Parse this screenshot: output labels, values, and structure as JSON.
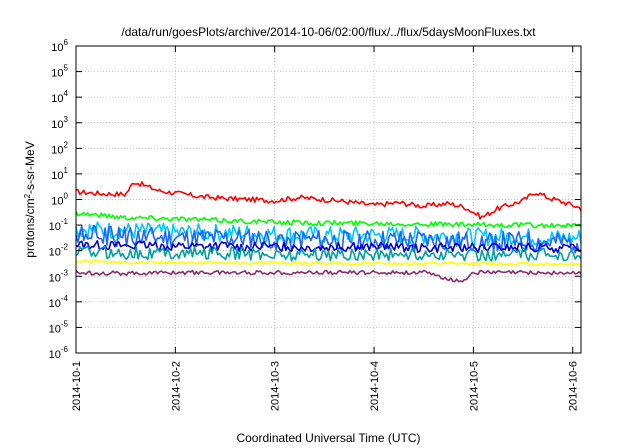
{
  "chart_data": {
    "type": "line",
    "title": "/data/run/goesPlots/archive/2014-10-06/02:00/flux/../flux/5daysMoonFluxes.txt",
    "xlabel": "Coordinated Universal Time (UTC)",
    "ylabel": {
      "prefix": "protons/cm",
      "sup": "2",
      "suffix": "-s-sr-MeV"
    },
    "y_scale": "log",
    "ylim": [
      1e-06,
      1000000.0
    ],
    "y_ticks": [
      {
        "value": 1e-06,
        "base": "10",
        "exp": "-6"
      },
      {
        "value": 1e-05,
        "base": "10",
        "exp": "-5"
      },
      {
        "value": 0.0001,
        "base": "10",
        "exp": "-4"
      },
      {
        "value": 0.001,
        "base": "10",
        "exp": "-3"
      },
      {
        "value": 0.01,
        "base": "10",
        "exp": "-2"
      },
      {
        "value": 0.1,
        "base": "10",
        "exp": "-1"
      },
      {
        "value": 1,
        "base": "10",
        "exp": "0"
      },
      {
        "value": 10,
        "base": "10",
        "exp": "1"
      },
      {
        "value": 100,
        "base": "10",
        "exp": "2"
      },
      {
        "value": 1000,
        "base": "10",
        "exp": "3"
      },
      {
        "value": 10000,
        "base": "10",
        "exp": "4"
      },
      {
        "value": 100000,
        "base": "10",
        "exp": "5"
      },
      {
        "value": 1000000,
        "base": "10",
        "exp": "6"
      }
    ],
    "x_range": [
      "2014-10-01",
      "2014-10-06 02:00"
    ],
    "x_ticks": [
      "2014-10-1",
      "2014-10-2",
      "2014-10-3",
      "2014-10-4",
      "2014-10-5",
      "2014-10-6"
    ],
    "grid": true,
    "series": [
      {
        "color": "#ff0000",
        "x": [
          "2014-10-01 00:00",
          "2014-10-01 06:00",
          "2014-10-01 12:00",
          "2014-10-01 14:00",
          "2014-10-01 20:00",
          "2014-10-02 06:00",
          "2014-10-02 12:00",
          "2014-10-02 18:00",
          "2014-10-03 00:00",
          "2014-10-03 06:00",
          "2014-10-03 12:00",
          "2014-10-03 18:00",
          "2014-10-04 00:00",
          "2014-10-04 06:00",
          "2014-10-04 12:00",
          "2014-10-04 18:00",
          "2014-10-04 22:00",
          "2014-10-05 02:00",
          "2014-10-05 06:00",
          "2014-10-05 12:00",
          "2014-10-05 15:00",
          "2014-10-05 18:00",
          "2014-10-06 00:00",
          "2014-10-06 02:00"
        ],
        "y": [
          2.0,
          1.7,
          1.6,
          5.0,
          2.2,
          1.3,
          1.1,
          1.0,
          0.9,
          1.2,
          1.0,
          0.8,
          0.6,
          0.75,
          0.55,
          0.7,
          0.5,
          0.2,
          0.45,
          0.9,
          2.0,
          1.2,
          0.6,
          0.45
        ]
      },
      {
        "color": "#00ff00",
        "x": [
          "2014-10-01 00:00",
          "2014-10-01 12:00",
          "2014-10-02 00:00",
          "2014-10-02 12:00",
          "2014-10-03 00:00",
          "2014-10-03 12:00",
          "2014-10-04 00:00",
          "2014-10-04 12:00",
          "2014-10-05 00:00",
          "2014-10-05 12:00",
          "2014-10-06 00:00",
          "2014-10-06 02:00"
        ],
        "y": [
          0.3,
          0.2,
          0.18,
          0.15,
          0.13,
          0.12,
          0.12,
          0.11,
          0.1,
          0.1,
          0.09,
          0.1
        ]
      },
      {
        "color": "#00c8ff",
        "x": [
          "2014-10-01 00:00",
          "2014-10-01 12:00",
          "2014-10-02 00:00",
          "2014-10-02 12:00",
          "2014-10-03 00:00",
          "2014-10-03 12:00",
          "2014-10-04 00:00",
          "2014-10-04 12:00",
          "2014-10-05 00:00",
          "2014-10-05 12:00",
          "2014-10-06 00:00",
          "2014-10-06 02:00"
        ],
        "y": [
          0.07,
          0.06,
          0.05,
          0.05,
          0.045,
          0.04,
          0.04,
          0.04,
          0.035,
          0.035,
          0.03,
          0.035
        ]
      },
      {
        "color": "#1e64ff",
        "x": [
          "2014-10-01 00:00",
          "2014-10-01 12:00",
          "2014-10-02 00:00",
          "2014-10-02 12:00",
          "2014-10-03 00:00",
          "2014-10-03 12:00",
          "2014-10-04 00:00",
          "2014-10-04 12:00",
          "2014-10-05 00:00",
          "2014-10-05 12:00",
          "2014-10-06 00:00",
          "2014-10-06 02:00"
        ],
        "y": [
          0.04,
          0.035,
          0.03,
          0.03,
          0.028,
          0.025,
          0.025,
          0.025,
          0.022,
          0.022,
          0.02,
          0.022
        ]
      },
      {
        "color": "#0000c8",
        "x": [
          "2014-10-01 00:00",
          "2014-10-01 12:00",
          "2014-10-02 00:00",
          "2014-10-02 12:00",
          "2014-10-03 00:00",
          "2014-10-03 12:00",
          "2014-10-04 00:00",
          "2014-10-04 12:00",
          "2014-10-05 00:00",
          "2014-10-05 12:00",
          "2014-10-06 00:00",
          "2014-10-06 02:00"
        ],
        "y": [
          0.018,
          0.016,
          0.015,
          0.015,
          0.014,
          0.014,
          0.014,
          0.013,
          0.013,
          0.013,
          0.012,
          0.013
        ]
      },
      {
        "color": "#00a0a0",
        "x": [
          "2014-10-01 00:00",
          "2014-10-01 12:00",
          "2014-10-02 00:00",
          "2014-10-02 12:00",
          "2014-10-03 00:00",
          "2014-10-03 12:00",
          "2014-10-04 00:00",
          "2014-10-04 12:00",
          "2014-10-05 00:00",
          "2014-10-05 12:00",
          "2014-10-06 00:00",
          "2014-10-06 02:00"
        ],
        "y": [
          0.009,
          0.008,
          0.008,
          0.008,
          0.007,
          0.007,
          0.007,
          0.007,
          0.007,
          0.007,
          0.007,
          0.007
        ]
      },
      {
        "color": "#ffff00",
        "x": [
          "2014-10-01 00:00",
          "2014-10-01 12:00",
          "2014-10-02 00:00",
          "2014-10-02 12:00",
          "2014-10-03 00:00",
          "2014-10-03 12:00",
          "2014-10-04 00:00",
          "2014-10-04 12:00",
          "2014-10-05 00:00",
          "2014-10-05 12:00",
          "2014-10-06 00:00",
          "2014-10-06 02:00"
        ],
        "y": [
          0.004,
          0.0035,
          0.0035,
          0.0033,
          0.0033,
          0.0032,
          0.0032,
          0.0031,
          0.0031,
          0.0031,
          0.003,
          0.003
        ]
      },
      {
        "color": "#8b2b6e",
        "x": [
          "2014-10-01 00:00",
          "2014-10-01 12:00",
          "2014-10-02 00:00",
          "2014-10-02 12:00",
          "2014-10-03 00:00",
          "2014-10-03 12:00",
          "2014-10-04 00:00",
          "2014-10-04 12:00",
          "2014-10-04 21:00",
          "2014-10-05 00:00",
          "2014-10-05 12:00",
          "2014-10-06 00:00",
          "2014-10-06 02:00"
        ],
        "y": [
          0.0014,
          0.0013,
          0.0014,
          0.0014,
          0.0014,
          0.0014,
          0.0014,
          0.0014,
          0.0006,
          0.0014,
          0.0014,
          0.0013,
          0.0014
        ]
      }
    ]
  }
}
